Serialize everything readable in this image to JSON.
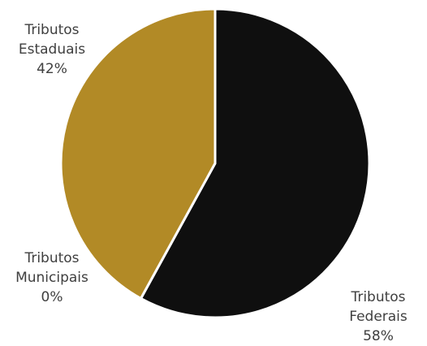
{
  "chart_data": {
    "type": "pie",
    "slices": [
      {
        "label_lines": [
          "Tributos",
          "Federais"
        ],
        "value": 58,
        "value_label": "58%",
        "color": "#0f0f0f"
      },
      {
        "label_lines": [
          "Tributos",
          "Municipais"
        ],
        "value": 0,
        "value_label": "0%",
        "color": "#b28a26"
      },
      {
        "label_lines": [
          "Tributos",
          "Estaduais"
        ],
        "value": 42,
        "value_label": "42%",
        "color": "#b28a26"
      }
    ],
    "slice_border_color": "#ffffff",
    "legend": "none"
  }
}
